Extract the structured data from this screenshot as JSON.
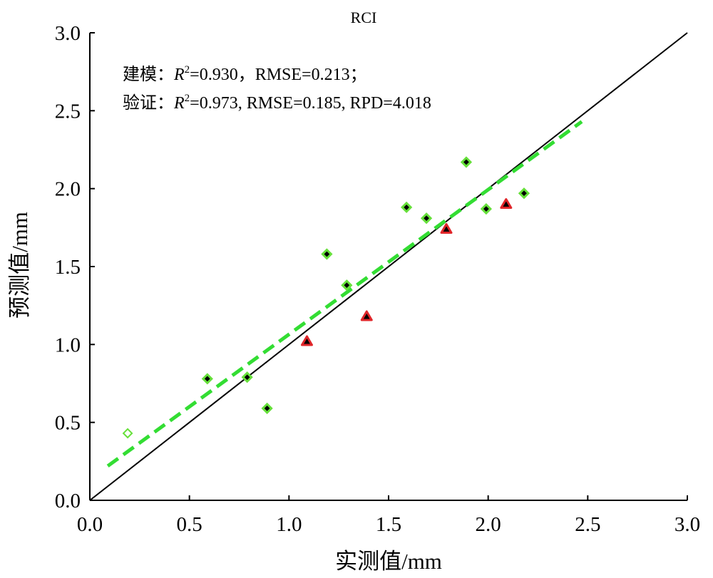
{
  "chart_data": {
    "type": "scatter",
    "title": "RCI",
    "xlabel": "实测值/mm",
    "ylabel": "预测值/mm",
    "xlim": [
      0.0,
      3.0
    ],
    "ylim": [
      0.0,
      3.0
    ],
    "xticks": [
      "0.0",
      "0.5",
      "1.0",
      "1.5",
      "2.0",
      "2.5",
      "3.0"
    ],
    "yticks": [
      "0.0",
      "0.5",
      "1.0",
      "1.5",
      "2.0",
      "2.5",
      "3.0"
    ],
    "grid": false,
    "annotations": {
      "modeling": {
        "prefix": "建模：",
        "r2_label": "R",
        "r2_sup": "2",
        "text": "=0.930，RMSE=0.213；"
      },
      "validation": {
        "prefix": "验证：",
        "r2_label": "R",
        "r2_sup": "2",
        "text": "=0.973, RMSE=0.185, RPD=4.018"
      }
    },
    "series": [
      {
        "role": "modeling",
        "marker": "diamond",
        "fill": "#000000",
        "edge": "#66e03a",
        "points": [
          [
            0.59,
            0.78
          ],
          [
            0.79,
            0.79
          ],
          [
            0.89,
            0.59
          ],
          [
            1.19,
            1.58
          ],
          [
            1.29,
            1.38
          ],
          [
            1.59,
            1.88
          ],
          [
            1.69,
            1.81
          ],
          [
            1.89,
            2.17
          ],
          [
            1.99,
            1.87
          ],
          [
            2.18,
            1.97
          ]
        ]
      },
      {
        "role": "modeling-open",
        "marker": "diamond-open",
        "fill": "#ffffff",
        "edge": "#66e03a",
        "points": [
          [
            0.19,
            0.43
          ]
        ]
      },
      {
        "role": "validation",
        "marker": "triangle",
        "fill": "#000000",
        "edge": "#e0262a",
        "points": [
          [
            1.09,
            1.02
          ],
          [
            1.39,
            1.18
          ],
          [
            1.79,
            1.74
          ],
          [
            2.09,
            1.9
          ]
        ]
      }
    ],
    "reference_line": {
      "style": "solid",
      "color": "#000000",
      "from": [
        0.0,
        0.0
      ],
      "to": [
        3.0,
        3.0
      ]
    },
    "fit_line": {
      "style": "dashed",
      "color": "#33dd33",
      "from": [
        0.09,
        0.22
      ],
      "to": [
        2.47,
        2.43
      ]
    }
  }
}
